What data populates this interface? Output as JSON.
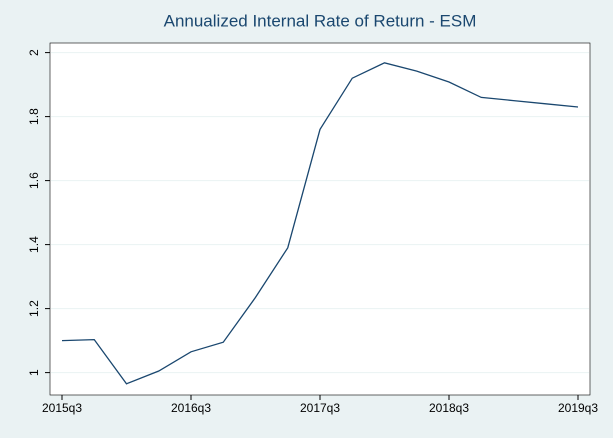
{
  "chart_data": {
    "type": "line",
    "title": "Annualized Internal Rate of Return - ESM",
    "categories": [
      "2015q3",
      null,
      null,
      null,
      "2016q3",
      null,
      null,
      null,
      "2017q3",
      null,
      null,
      null,
      "2018q3",
      null,
      null,
      null,
      "2019q3"
    ],
    "values": [
      1.1,
      1.103,
      0.965,
      1.005,
      1.065,
      1.095,
      1.235,
      1.39,
      1.76,
      1.92,
      1.968,
      1.942,
      1.908,
      1.86,
      1.85,
      1.84,
      1.83
    ],
    "color": "#1a476f",
    "ylim": [
      0.93,
      2.03
    ],
    "yticks": [
      1,
      1.2,
      1.4,
      1.6,
      1.8,
      2
    ],
    "grid": true
  }
}
